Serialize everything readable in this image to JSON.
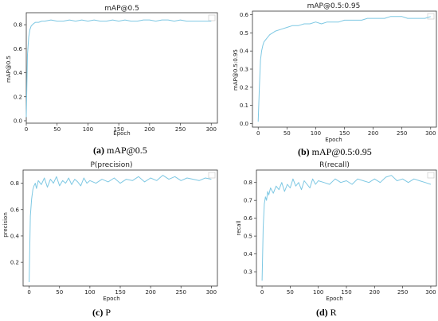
{
  "chart_data": [
    {
      "type": "line",
      "title": "mAP@0.5",
      "xlabel": "Epoch",
      "ylabel": "mAP@0.5",
      "xlim": [
        0,
        310
      ],
      "ylim": [
        -0.02,
        0.9
      ],
      "xticks": [
        0,
        50,
        100,
        150,
        200,
        250,
        300
      ],
      "yticks": [
        0.0,
        0.2,
        0.4,
        0.6,
        0.8
      ],
      "ytick_labels": [
        "0.0",
        "0.2",
        "0.4",
        "0.6",
        "0.8"
      ],
      "x": [
        0,
        2,
        4,
        6,
        8,
        10,
        12,
        15,
        20,
        25,
        30,
        40,
        50,
        60,
        70,
        80,
        90,
        100,
        110,
        120,
        130,
        140,
        150,
        160,
        170,
        180,
        190,
        200,
        210,
        220,
        230,
        240,
        250,
        260,
        270,
        280,
        290,
        300
      ],
      "series": [
        {
          "color": "#7ec8e3",
          "values": [
            0.03,
            0.55,
            0.7,
            0.76,
            0.79,
            0.8,
            0.81,
            0.82,
            0.82,
            0.83,
            0.83,
            0.84,
            0.83,
            0.83,
            0.84,
            0.83,
            0.84,
            0.83,
            0.84,
            0.83,
            0.83,
            0.84,
            0.83,
            0.84,
            0.83,
            0.83,
            0.84,
            0.84,
            0.83,
            0.84,
            0.84,
            0.83,
            0.84,
            0.83,
            0.83,
            0.83,
            0.83,
            0.83
          ]
        }
      ],
      "caption_letter": "(a)",
      "caption_text": " mAP@0.5"
    },
    {
      "type": "line",
      "title": "mAP@0.5:0.95",
      "xlabel": "Epoch",
      "ylabel": "mAP@0.5:0.95",
      "xlim": [
        -10,
        310
      ],
      "ylim": [
        -0.02,
        0.62
      ],
      "xticks": [
        0,
        50,
        100,
        150,
        200,
        250,
        300
      ],
      "yticks": [
        0.0,
        0.1,
        0.2,
        0.3,
        0.4,
        0.5,
        0.6
      ],
      "ytick_labels": [
        "0.0",
        "0.1",
        "0.2",
        "0.3",
        "0.4",
        "0.5",
        "0.6"
      ],
      "x": [
        0,
        2,
        4,
        6,
        8,
        10,
        15,
        20,
        25,
        30,
        40,
        50,
        60,
        70,
        80,
        90,
        100,
        110,
        120,
        130,
        140,
        150,
        160,
        170,
        180,
        190,
        200,
        210,
        220,
        230,
        240,
        250,
        260,
        270,
        280,
        290,
        300
      ],
      "series": [
        {
          "color": "#7ec8e3",
          "values": [
            0.01,
            0.2,
            0.35,
            0.4,
            0.43,
            0.45,
            0.47,
            0.49,
            0.5,
            0.51,
            0.52,
            0.53,
            0.54,
            0.54,
            0.55,
            0.55,
            0.56,
            0.55,
            0.56,
            0.56,
            0.56,
            0.57,
            0.57,
            0.57,
            0.57,
            0.58,
            0.58,
            0.58,
            0.58,
            0.59,
            0.59,
            0.59,
            0.58,
            0.58,
            0.58,
            0.58,
            0.59
          ]
        }
      ],
      "caption_letter": "(b)",
      "caption_text": " mAP@0.5:0.95"
    },
    {
      "type": "line",
      "title": "P(precision)",
      "xlabel": "Epoch",
      "ylabel": "precision",
      "xlim": [
        -10,
        310
      ],
      "ylim": [
        0.02,
        0.9
      ],
      "xticks": [
        0,
        50,
        100,
        150,
        200,
        250,
        300
      ],
      "yticks": [
        0.2,
        0.4,
        0.6,
        0.8
      ],
      "ytick_labels": [
        "0.2",
        "0.4",
        "0.6",
        "0.8"
      ],
      "x": [
        0,
        2,
        4,
        6,
        8,
        10,
        12,
        15,
        20,
        25,
        30,
        35,
        40,
        45,
        50,
        55,
        60,
        65,
        70,
        75,
        80,
        85,
        90,
        95,
        100,
        110,
        120,
        130,
        140,
        150,
        160,
        170,
        180,
        190,
        200,
        210,
        220,
        230,
        240,
        250,
        260,
        270,
        280,
        290,
        300
      ],
      "series": [
        {
          "color": "#7ec8e3",
          "values": [
            0.05,
            0.55,
            0.68,
            0.75,
            0.78,
            0.8,
            0.76,
            0.82,
            0.79,
            0.84,
            0.77,
            0.83,
            0.8,
            0.85,
            0.78,
            0.82,
            0.8,
            0.84,
            0.79,
            0.83,
            0.81,
            0.78,
            0.84,
            0.8,
            0.82,
            0.8,
            0.83,
            0.81,
            0.84,
            0.8,
            0.83,
            0.82,
            0.85,
            0.81,
            0.84,
            0.82,
            0.86,
            0.83,
            0.85,
            0.82,
            0.84,
            0.83,
            0.82,
            0.84,
            0.83
          ]
        }
      ],
      "caption_letter": "(c)",
      "caption_text": " P"
    },
    {
      "type": "line",
      "title": "R(recall)",
      "xlabel": "Epoch",
      "ylabel": "recall",
      "xlim": [
        -10,
        310
      ],
      "ylim": [
        0.22,
        0.87
      ],
      "xticks": [
        0,
        50,
        100,
        150,
        200,
        250,
        300
      ],
      "yticks": [
        0.3,
        0.4,
        0.5,
        0.6,
        0.7,
        0.8
      ],
      "ytick_labels": [
        "0.3",
        "0.4",
        "0.5",
        "0.6",
        "0.7",
        "0.8"
      ],
      "x": [
        0,
        2,
        4,
        6,
        8,
        10,
        12,
        15,
        20,
        25,
        30,
        35,
        40,
        45,
        50,
        55,
        60,
        65,
        70,
        75,
        80,
        85,
        90,
        95,
        100,
        110,
        120,
        130,
        140,
        150,
        160,
        170,
        180,
        190,
        200,
        210,
        220,
        230,
        240,
        250,
        260,
        270,
        280,
        290,
        300
      ],
      "series": [
        {
          "color": "#7ec8e3",
          "values": [
            0.25,
            0.55,
            0.68,
            0.72,
            0.7,
            0.75,
            0.73,
            0.77,
            0.74,
            0.78,
            0.76,
            0.8,
            0.75,
            0.79,
            0.77,
            0.82,
            0.78,
            0.8,
            0.76,
            0.81,
            0.79,
            0.77,
            0.82,
            0.79,
            0.81,
            0.8,
            0.79,
            0.82,
            0.8,
            0.81,
            0.79,
            0.82,
            0.81,
            0.8,
            0.82,
            0.8,
            0.83,
            0.84,
            0.81,
            0.82,
            0.8,
            0.82,
            0.81,
            0.8,
            0.79
          ]
        }
      ],
      "caption_letter": "(d)",
      "caption_text": " R"
    }
  ]
}
